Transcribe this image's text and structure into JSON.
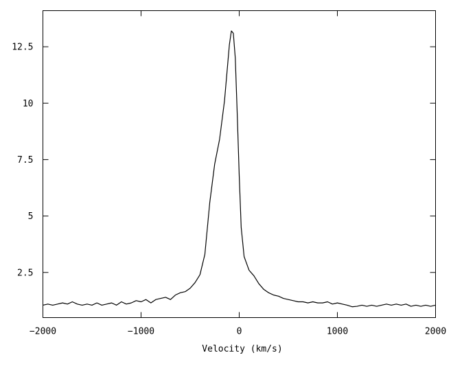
{
  "chart_data": {
    "type": "line",
    "title": "",
    "xlabel": "Velocity (km/s)",
    "ylabel": "",
    "xlim": [
      -2000,
      2000
    ],
    "ylim": [
      0.5,
      14.1
    ],
    "xticks": [
      -2000,
      -1000,
      0,
      1000,
      2000
    ],
    "xtick_labels": [
      "−2000",
      "−1000",
      "0",
      "1000",
      "2000"
    ],
    "yticks": [
      2.5,
      5,
      7.5,
      10,
      12.5
    ],
    "ytick_labels": [
      "2.5",
      "5",
      "7.5",
      "10",
      "12.5"
    ],
    "grid": false,
    "series": [
      {
        "x": [
          -2000,
          -1950,
          -1900,
          -1850,
          -1800,
          -1750,
          -1700,
          -1650,
          -1600,
          -1550,
          -1500,
          -1450,
          -1400,
          -1350,
          -1300,
          -1250,
          -1200,
          -1150,
          -1100,
          -1050,
          -1000,
          -950,
          -900,
          -850,
          -800,
          -750,
          -700,
          -650,
          -600,
          -550,
          -500,
          -450,
          -400,
          -350,
          -300,
          -250,
          -200,
          -150,
          -120,
          -100,
          -80,
          -60,
          -40,
          -20,
          0,
          20,
          50,
          100,
          150,
          200,
          250,
          300,
          350,
          400,
          450,
          500,
          550,
          600,
          650,
          700,
          750,
          800,
          850,
          900,
          950,
          1000,
          1050,
          1100,
          1150,
          1200,
          1250,
          1300,
          1350,
          1400,
          1450,
          1500,
          1550,
          1600,
          1650,
          1700,
          1750,
          1800,
          1850,
          1900,
          1950,
          2000
        ],
        "y": [
          1.05,
          1.1,
          1.05,
          1.1,
          1.15,
          1.1,
          1.2,
          1.1,
          1.05,
          1.1,
          1.05,
          1.15,
          1.05,
          1.1,
          1.15,
          1.05,
          1.2,
          1.1,
          1.15,
          1.25,
          1.2,
          1.3,
          1.15,
          1.3,
          1.35,
          1.4,
          1.3,
          1.5,
          1.6,
          1.65,
          1.8,
          2.05,
          2.4,
          3.3,
          5.6,
          7.3,
          8.4,
          10.1,
          11.6,
          12.6,
          13.2,
          13.1,
          12.0,
          9.5,
          6.8,
          4.5,
          3.2,
          2.6,
          2.35,
          2.0,
          1.75,
          1.6,
          1.5,
          1.45,
          1.35,
          1.3,
          1.25,
          1.2,
          1.2,
          1.15,
          1.2,
          1.15,
          1.15,
          1.2,
          1.1,
          1.15,
          1.1,
          1.05,
          0.98,
          1.0,
          1.05,
          1.0,
          1.05,
          1.0,
          1.05,
          1.1,
          1.05,
          1.1,
          1.05,
          1.1,
          1.0,
          1.05,
          1.0,
          1.05,
          1.0,
          1.05
        ]
      }
    ]
  }
}
